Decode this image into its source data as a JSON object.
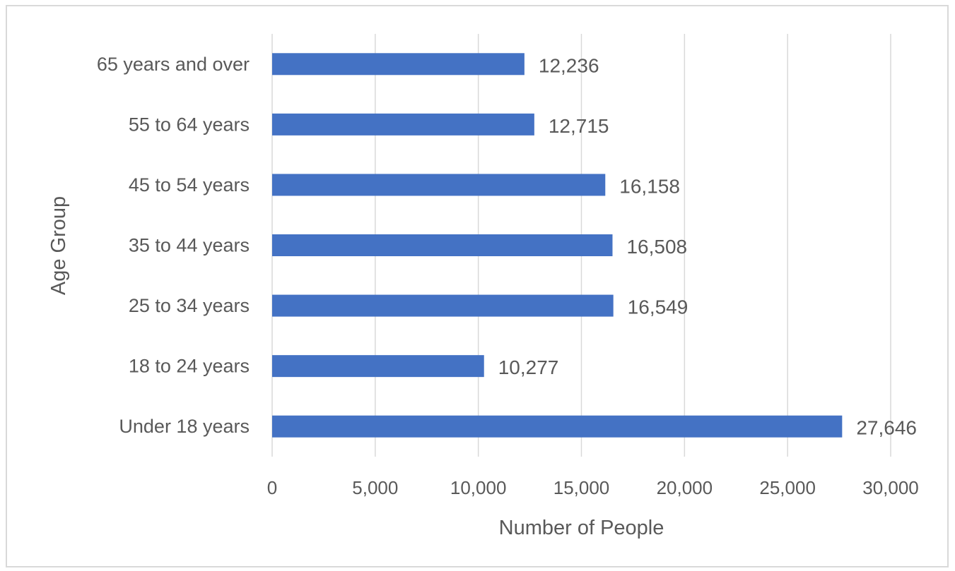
{
  "chart_data": {
    "type": "bar",
    "orientation": "horizontal",
    "categories": [
      "Under 18 years",
      "18 to 24 years",
      "25 to 34 years",
      "35 to 44 years",
      "45 to 54 years",
      "55 to 64 years",
      "65 years and over"
    ],
    "values": [
      27646,
      10277,
      16549,
      16508,
      16158,
      12715,
      12236
    ],
    "data_labels": [
      "27,646",
      "10,277",
      "16,549",
      "16,508",
      "16,158",
      "12,715",
      "12,236"
    ],
    "xlabel": "Number of People",
    "ylabel": "Age Group",
    "xlim": [
      0,
      30000
    ],
    "x_ticks": [
      0,
      5000,
      10000,
      15000,
      20000,
      25000,
      30000
    ],
    "x_tick_labels": [
      "0",
      "5,000",
      "10,000",
      "15,000",
      "20,000",
      "25,000",
      "30,000"
    ],
    "grid": "vertical",
    "legend": "none",
    "bar_color": "#4472c4",
    "grid_color": "#d9d9d9",
    "text_color": "#595959"
  }
}
